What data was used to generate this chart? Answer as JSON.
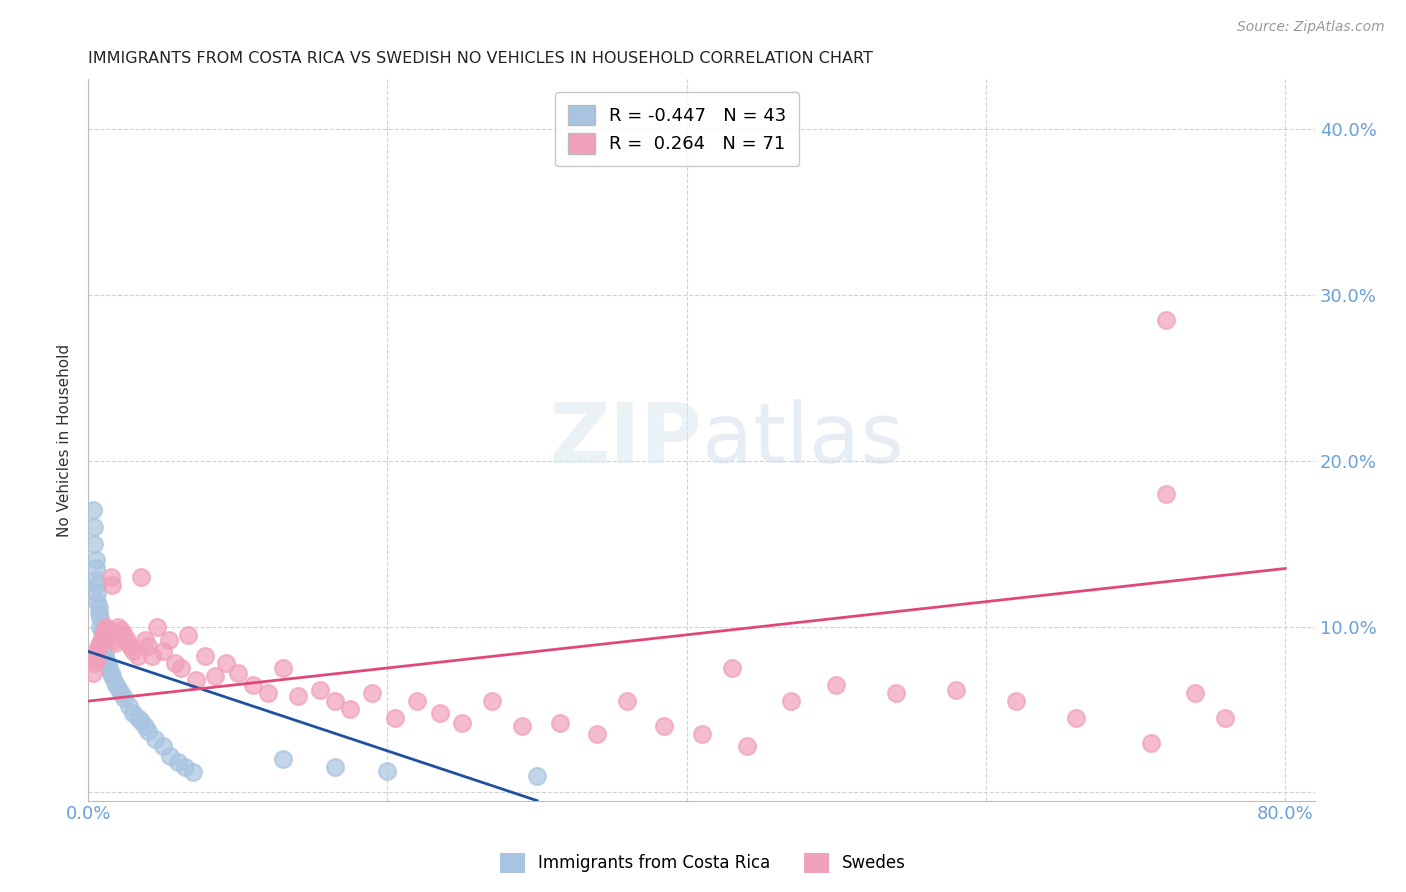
{
  "title": "IMMIGRANTS FROM COSTA RICA VS SWEDISH NO VEHICLES IN HOUSEHOLD CORRELATION CHART",
  "source": "Source: ZipAtlas.com",
  "ylabel": "No Vehicles in Household",
  "xlim": [
    0.0,
    0.82
  ],
  "ylim": [
    -0.005,
    0.43
  ],
  "yticks": [
    0.0,
    0.1,
    0.2,
    0.3,
    0.4
  ],
  "xticks": [
    0.0,
    0.2,
    0.4,
    0.6,
    0.8
  ],
  "xtick_labels": [
    "0.0%",
    "",
    "",
    "",
    "80.0%"
  ],
  "ytick_labels_right": [
    "",
    "10.0%",
    "20.0%",
    "30.0%",
    "40.0%"
  ],
  "grid_color": "#c8c8c8",
  "background_color": "#ffffff",
  "tick_label_color": "#6aa0d8",
  "blue_R": -0.447,
  "blue_N": 43,
  "pink_R": 0.264,
  "pink_N": 71,
  "blue_color": "#a8c4e0",
  "pink_color": "#f0a0b8",
  "blue_line_color": "#2050a0",
  "pink_line_color": "#e04878",
  "blue_line_x0": 0.0,
  "blue_line_y0": 0.085,
  "blue_line_x1": 0.3,
  "blue_line_y1": -0.005,
  "pink_line_x0": 0.0,
  "pink_line_y0": 0.055,
  "pink_line_x1": 0.8,
  "pink_line_y1": 0.135,
  "blue_pts_x": [
    0.003,
    0.004,
    0.004,
    0.005,
    0.005,
    0.005,
    0.006,
    0.006,
    0.006,
    0.007,
    0.007,
    0.008,
    0.008,
    0.009,
    0.009,
    0.01,
    0.01,
    0.011,
    0.012,
    0.013,
    0.014,
    0.015,
    0.016,
    0.018,
    0.02,
    0.022,
    0.024,
    0.027,
    0.03,
    0.033,
    0.035,
    0.038,
    0.04,
    0.045,
    0.05,
    0.055,
    0.06,
    0.065,
    0.07,
    0.13,
    0.165,
    0.2,
    0.3
  ],
  "blue_pts_y": [
    0.17,
    0.16,
    0.15,
    0.14,
    0.135,
    0.128,
    0.125,
    0.12,
    0.115,
    0.112,
    0.108,
    0.105,
    0.1,
    0.097,
    0.093,
    0.09,
    0.086,
    0.083,
    0.08,
    0.077,
    0.075,
    0.072,
    0.07,
    0.066,
    0.063,
    0.06,
    0.057,
    0.052,
    0.048,
    0.045,
    0.043,
    0.04,
    0.037,
    0.032,
    0.028,
    0.022,
    0.018,
    0.015,
    0.012,
    0.02,
    0.015,
    0.013,
    0.01
  ],
  "pink_pts_x": [
    0.003,
    0.004,
    0.005,
    0.006,
    0.006,
    0.007,
    0.008,
    0.009,
    0.01,
    0.011,
    0.012,
    0.013,
    0.014,
    0.015,
    0.016,
    0.017,
    0.018,
    0.02,
    0.022,
    0.024,
    0.026,
    0.028,
    0.03,
    0.033,
    0.035,
    0.038,
    0.04,
    0.043,
    0.046,
    0.05,
    0.054,
    0.058,
    0.062,
    0.067,
    0.072,
    0.078,
    0.085,
    0.092,
    0.1,
    0.11,
    0.12,
    0.13,
    0.14,
    0.155,
    0.165,
    0.175,
    0.19,
    0.205,
    0.22,
    0.235,
    0.25,
    0.27,
    0.29,
    0.315,
    0.34,
    0.36,
    0.385,
    0.41,
    0.44,
    0.47,
    0.5,
    0.54,
    0.58,
    0.62,
    0.66,
    0.71,
    0.72,
    0.74,
    0.76,
    0.43,
    0.72
  ],
  "pink_pts_y": [
    0.072,
    0.078,
    0.082,
    0.086,
    0.08,
    0.088,
    0.09,
    0.092,
    0.095,
    0.098,
    0.1,
    0.095,
    0.098,
    0.13,
    0.125,
    0.092,
    0.09,
    0.1,
    0.098,
    0.095,
    0.092,
    0.088,
    0.085,
    0.082,
    0.13,
    0.092,
    0.088,
    0.082,
    0.1,
    0.085,
    0.092,
    0.078,
    0.075,
    0.095,
    0.068,
    0.082,
    0.07,
    0.078,
    0.072,
    0.065,
    0.06,
    0.075,
    0.058,
    0.062,
    0.055,
    0.05,
    0.06,
    0.045,
    0.055,
    0.048,
    0.042,
    0.055,
    0.04,
    0.042,
    0.035,
    0.055,
    0.04,
    0.035,
    0.028,
    0.055,
    0.065,
    0.06,
    0.062,
    0.055,
    0.045,
    0.03,
    0.18,
    0.06,
    0.045,
    0.075,
    0.285
  ]
}
